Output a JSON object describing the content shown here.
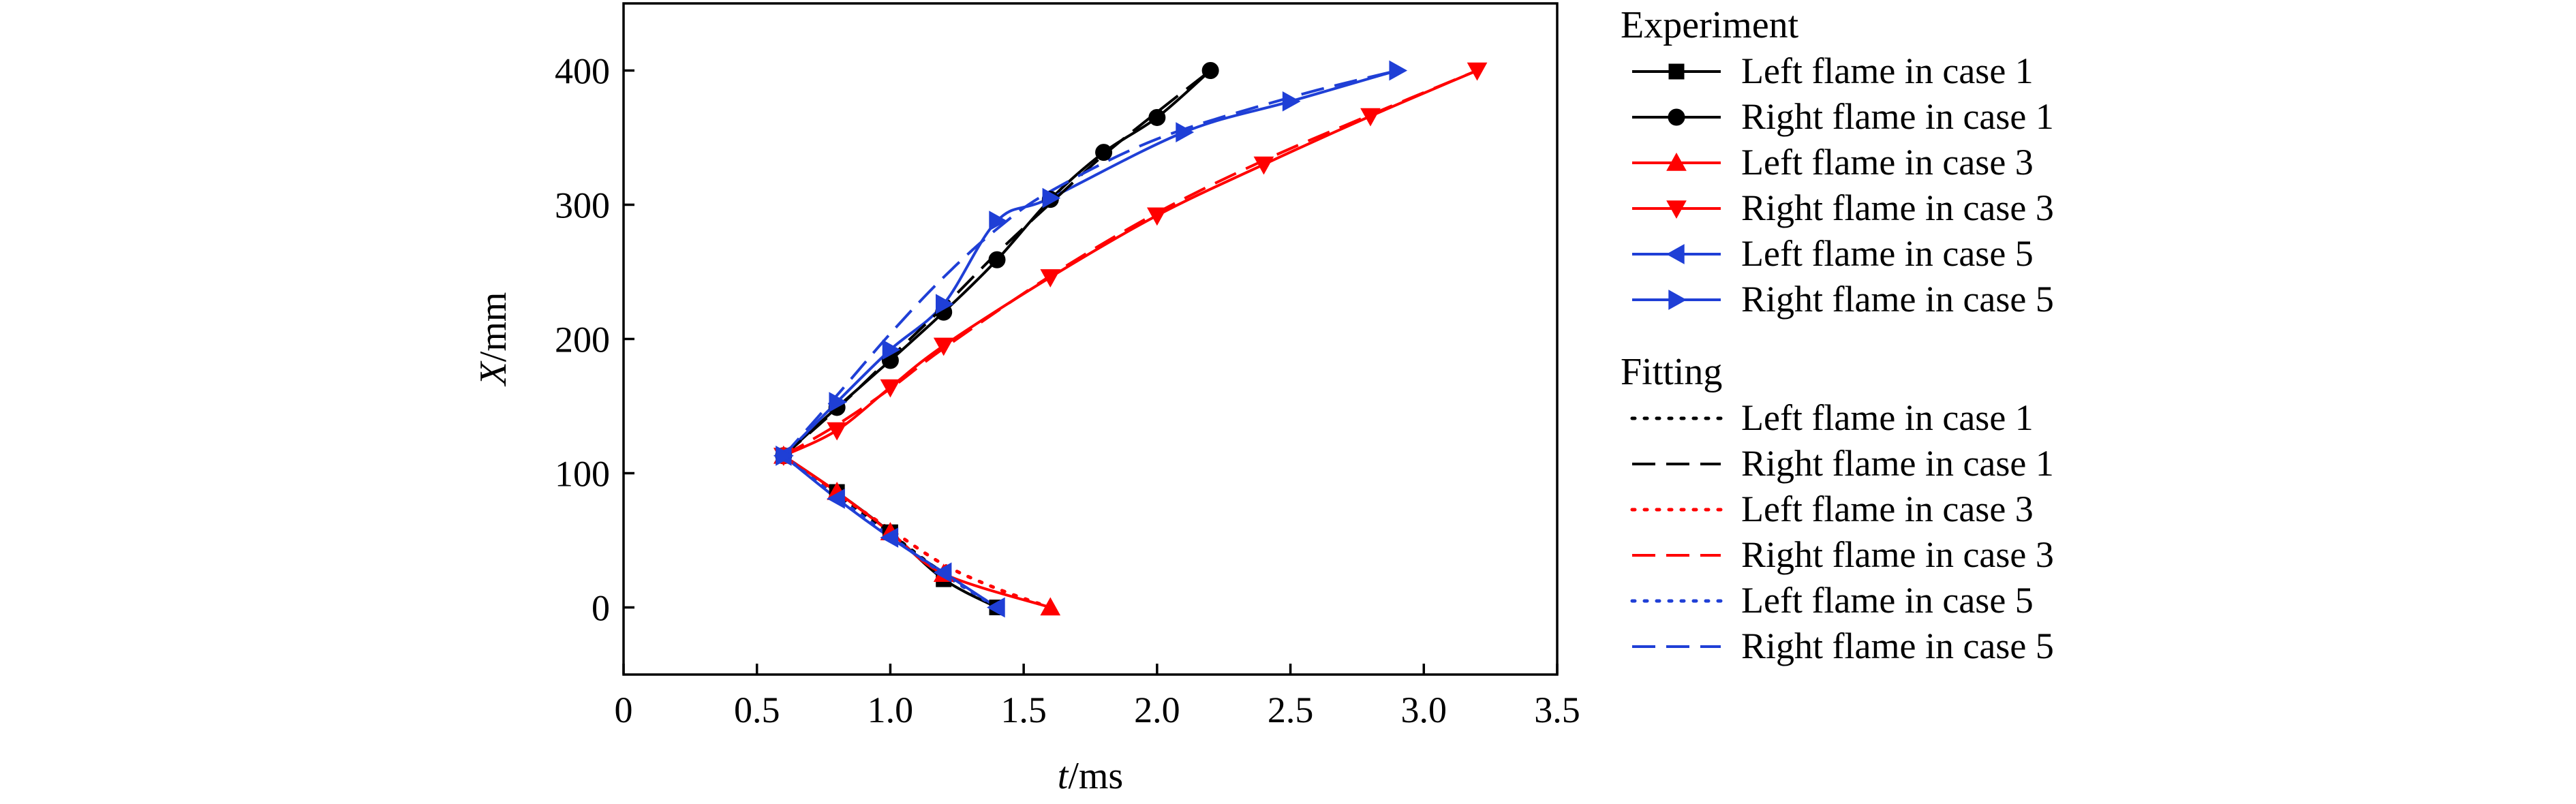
{
  "chart_data": {
    "type": "line",
    "xlabel": {
      "var": "t",
      "unit": "/ms"
    },
    "ylabel": {
      "var": "X",
      "unit": "/mm"
    },
    "xlim": [
      0,
      3.5
    ],
    "ylim": [
      -50,
      450
    ],
    "xticks": [
      0,
      0.5,
      1.0,
      1.5,
      2.0,
      2.5,
      3.0,
      3.5
    ],
    "xtick_labels": [
      "0",
      "0.5",
      "1.0",
      "1.5",
      "2.0",
      "2.5",
      "3.0",
      "3.5"
    ],
    "yticks": [
      0,
      100,
      200,
      300,
      400
    ],
    "ytick_labels": [
      "0",
      "100",
      "200",
      "300",
      "400"
    ],
    "grid": false,
    "legend_position": "right",
    "legend_groups": [
      {
        "heading": "Experiment",
        "entries": [
          0,
          1,
          2,
          3,
          4,
          5
        ]
      },
      {
        "heading": "Fitting",
        "entries": [
          6,
          7,
          8,
          9,
          10,
          11
        ]
      }
    ],
    "series": [
      {
        "name": "Left flame in case 1",
        "group": "Experiment",
        "color": "#000000",
        "marker": "square",
        "dash": "solid",
        "x": [
          0.6,
          0.8,
          1.0,
          1.2,
          1.4
        ],
        "y": [
          113,
          86,
          56,
          21,
          0
        ]
      },
      {
        "name": "Right flame in case 1",
        "group": "Experiment",
        "color": "#000000",
        "marker": "circle",
        "dash": "solid",
        "x": [
          0.6,
          0.8,
          1.0,
          1.2,
          1.4,
          1.6,
          1.8,
          2.0,
          2.2
        ],
        "y": [
          113,
          149,
          184,
          220,
          259,
          304,
          339,
          365,
          400
        ]
      },
      {
        "name": "Left flame in case 3",
        "group": "Experiment",
        "color": "#ff0000",
        "marker": "triangle-up",
        "dash": "solid",
        "x": [
          0.6,
          0.8,
          1.0,
          1.2,
          1.6
        ],
        "y": [
          113,
          86,
          56,
          25,
          0
        ]
      },
      {
        "name": "Right flame in case 3",
        "group": "Experiment",
        "color": "#ff0000",
        "marker": "triangle-down",
        "dash": "solid",
        "x": [
          0.6,
          0.8,
          1.0,
          1.2,
          1.6,
          2.0,
          2.4,
          2.8,
          3.2
        ],
        "y": [
          113,
          132,
          164,
          195,
          246,
          292,
          330,
          366,
          400
        ]
      },
      {
        "name": "Left flame in case 5",
        "group": "Experiment",
        "color": "#1f3fd6",
        "marker": "triangle-left",
        "dash": "solid",
        "x": [
          0.6,
          0.8,
          1.0,
          1.2,
          1.4
        ],
        "y": [
          113,
          81,
          52,
          26,
          0
        ]
      },
      {
        "name": "Right flame in case 5",
        "group": "Experiment",
        "color": "#1f3fd6",
        "marker": "triangle-right",
        "dash": "solid",
        "x": [
          0.6,
          0.8,
          1.0,
          1.2,
          1.4,
          1.6,
          2.1,
          2.5,
          2.9
        ],
        "y": [
          113,
          153,
          192,
          226,
          288,
          305,
          354,
          377,
          400
        ]
      },
      {
        "name": "Left flame in case 1",
        "group": "Fitting",
        "color": "#000000",
        "marker": "none",
        "dash": "dotted",
        "x": [
          0.6,
          0.8,
          1.0,
          1.2,
          1.4
        ],
        "y": [
          113,
          84,
          55,
          25,
          0
        ]
      },
      {
        "name": "Right flame in case 1",
        "group": "Fitting",
        "color": "#000000",
        "marker": "none",
        "dash": "dashed",
        "x": [
          0.6,
          0.8,
          1.0,
          1.2,
          1.4,
          1.6,
          1.8,
          2.0,
          2.2
        ],
        "y": [
          113,
          148,
          186,
          224,
          264,
          301,
          337,
          369,
          400
        ]
      },
      {
        "name": "Left flame in case 3",
        "group": "Fitting",
        "color": "#ff0000",
        "marker": "none",
        "dash": "dotted",
        "x": [
          0.6,
          0.8,
          1.0,
          1.2,
          1.4,
          1.6
        ],
        "y": [
          113,
          85,
          58,
          32,
          14,
          0
        ]
      },
      {
        "name": "Right flame in case 3",
        "group": "Fitting",
        "color": "#ff0000",
        "marker": "none",
        "dash": "dashed",
        "x": [
          0.6,
          0.8,
          1.0,
          1.2,
          1.6,
          2.0,
          2.4,
          2.8,
          3.2
        ],
        "y": [
          113,
          136,
          163,
          193,
          247,
          294,
          333,
          367,
          400
        ]
      },
      {
        "name": "Left flame in case 5",
        "group": "Fitting",
        "color": "#1f3fd6",
        "marker": "none",
        "dash": "dotted",
        "x": [
          0.6,
          0.8,
          1.0,
          1.2,
          1.4
        ],
        "y": [
          113,
          82,
          53,
          25,
          0
        ]
      },
      {
        "name": "Right flame in case 5",
        "group": "Fitting",
        "color": "#1f3fd6",
        "marker": "none",
        "dash": "dashed",
        "x": [
          0.6,
          0.8,
          1.0,
          1.2,
          1.4,
          1.6,
          2.0,
          2.5,
          2.9
        ],
        "y": [
          113,
          158,
          204,
          246,
          282,
          310,
          349,
          380,
          400
        ]
      }
    ]
  }
}
